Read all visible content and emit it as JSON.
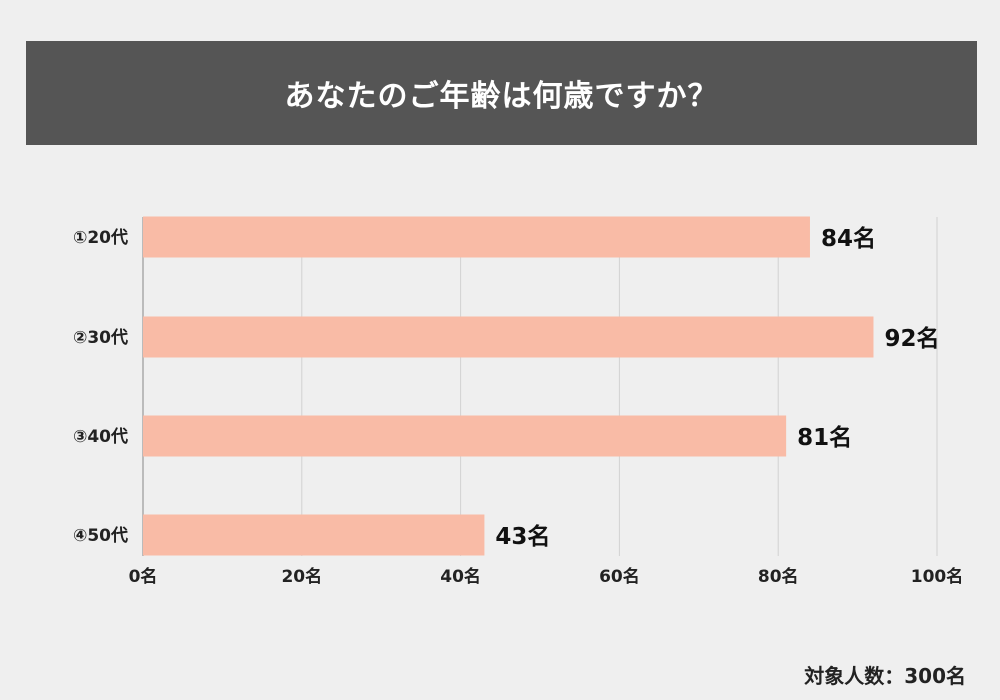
{
  "header": {
    "title": "あなたのご年齢は何歳ですか？"
  },
  "footer": {
    "total_label": "対象人数：300名"
  },
  "chart_data": {
    "type": "bar",
    "orientation": "horizontal",
    "title": "あなたのご年齢は何歳ですか？",
    "categories": [
      "①20代",
      "②30代",
      "③40代",
      "④50代"
    ],
    "values": [
      84,
      92,
      81,
      43
    ],
    "value_labels": [
      "84名",
      "92名",
      "81名",
      "43名"
    ],
    "xlim": [
      0,
      100
    ],
    "x_ticks": [
      0,
      20,
      40,
      60,
      80,
      100
    ],
    "x_tick_labels": [
      "0名",
      "20名",
      "40名",
      "60名",
      "80名",
      "100名"
    ],
    "xlabel": "",
    "ylabel": "",
    "grid": true,
    "colors": {
      "bar": "#f9bba6",
      "grid": "#d2d2d2",
      "axis": "#aaaaaa",
      "title_bg": "#555555",
      "background": "#efefef"
    }
  }
}
